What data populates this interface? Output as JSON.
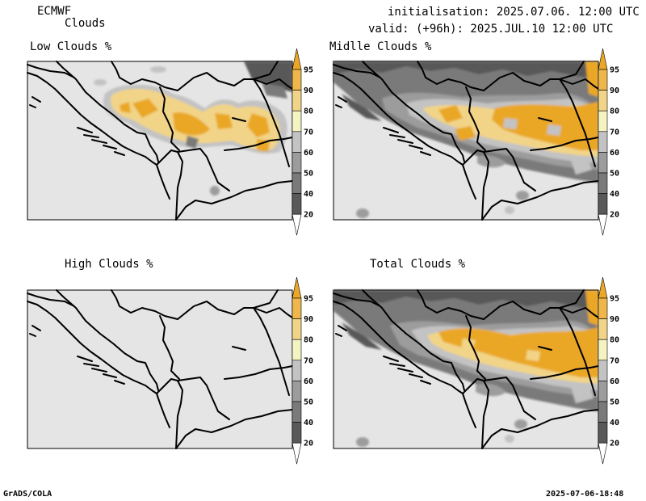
{
  "header": {
    "model": "ECMWF",
    "product": "Clouds",
    "initialisation": "initialisation: 2025.07.06. 12:00 UTC",
    "valid": "valid: (+96h): 2025.JUL.10 12:00 UTC"
  },
  "panels": [
    {
      "title": "Low Clouds %"
    },
    {
      "title": "Midlle Clouds %"
    },
    {
      "title": "High Clouds %"
    },
    {
      "title": "Total Clouds %"
    }
  ],
  "colorbar": {
    "levels": [
      "20",
      "40",
      "50",
      "60",
      "70",
      "80",
      "90",
      "95"
    ],
    "colors": {
      "lt20": "#ffffff",
      "c20": "#595959",
      "c40": "#7a7a7a",
      "c50": "#9c9c9c",
      "c60": "#c3c3c3",
      "c70": "#f4f3c2",
      "c80": "#f1d487",
      "c90": "#eeb74c",
      "c95": "#eaa728"
    }
  },
  "colors": {
    "land": "#e5e5e5",
    "border": "#000000"
  },
  "footer": {
    "left": "GrADS/COLA",
    "right": "2025-07-06-18:48"
  }
}
